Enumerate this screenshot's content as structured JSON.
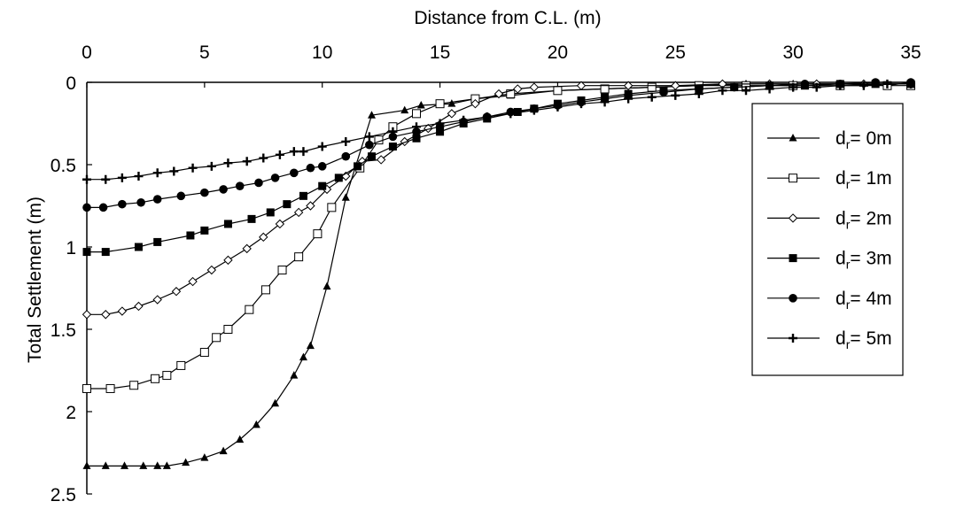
{
  "chart_data": {
    "type": "line",
    "xlabel": "Distance from C.L. (m)",
    "ylabel": "Total Settlement (m)",
    "xlim": [
      0,
      35
    ],
    "ylim": [
      0,
      2.5
    ],
    "y_inverted": true,
    "x_axis_position": "top",
    "x_ticks": [
      0,
      5,
      10,
      15,
      20,
      25,
      30,
      35
    ],
    "y_ticks": [
      0,
      0.5,
      1,
      1.5,
      2,
      2.5
    ],
    "x_tick_labels": [
      "0",
      "5",
      "10",
      "15",
      "20",
      "25",
      "30",
      "35"
    ],
    "y_tick_labels": [
      "0",
      "0.5",
      "1",
      "1.5",
      "2",
      "2.5"
    ],
    "grid": false,
    "legend_position": "right",
    "series": [
      {
        "legend_main": "d",
        "legend_sub": "r",
        "legend_tail": "= 0m",
        "marker": "triangle-filled",
        "x": [
          0,
          0.8,
          1.6,
          2.4,
          3.0,
          3.4,
          4.2,
          5.0,
          5.8,
          6.5,
          7.2,
          8.0,
          8.8,
          9.2,
          9.5,
          10.2,
          11.0,
          12.1,
          13.5,
          14.2,
          15.5,
          16.5,
          18.0,
          20.0,
          22.0,
          24.0,
          26.0,
          28.0,
          30.0,
          32.0,
          34.0,
          35.0
        ],
        "values": [
          2.33,
          2.33,
          2.33,
          2.33,
          2.33,
          2.33,
          2.31,
          2.28,
          2.24,
          2.17,
          2.08,
          1.95,
          1.78,
          1.67,
          1.6,
          1.24,
          0.7,
          0.2,
          0.17,
          0.14,
          0.13,
          0.1,
          0.08,
          0.05,
          0.04,
          0.03,
          0.02,
          0.01,
          0.01,
          0.01,
          0.02,
          0.0
        ]
      },
      {
        "legend_main": "d",
        "legend_sub": "r",
        "legend_tail": "= 1m",
        "marker": "square-open",
        "x": [
          0,
          1.0,
          2.0,
          2.9,
          3.4,
          4.0,
          5.0,
          5.5,
          6.0,
          6.9,
          7.6,
          8.3,
          9.0,
          9.8,
          10.4,
          11.6,
          12.4,
          13.0,
          14.0,
          15.0,
          16.5,
          18.0,
          20.0,
          22.0,
          24.0,
          26.0,
          28.0,
          30.0,
          32.0,
          34.0,
          35.0
        ],
        "values": [
          1.86,
          1.86,
          1.84,
          1.8,
          1.78,
          1.72,
          1.64,
          1.55,
          1.5,
          1.38,
          1.26,
          1.14,
          1.06,
          0.92,
          0.76,
          0.52,
          0.35,
          0.27,
          0.19,
          0.13,
          0.1,
          0.07,
          0.05,
          0.04,
          0.03,
          0.02,
          0.02,
          0.02,
          0.02,
          0.02,
          0.02
        ]
      },
      {
        "legend_main": "d",
        "legend_sub": "r",
        "legend_tail": "= 2m",
        "marker": "diamond-open",
        "x": [
          0,
          0.8,
          1.5,
          2.2,
          3.0,
          3.8,
          4.5,
          5.3,
          6.0,
          6.8,
          7.5,
          8.2,
          9.0,
          9.5,
          10.2,
          11.0,
          11.7,
          12.5,
          13.5,
          14.5,
          15.5,
          16.5,
          17.5,
          18.3,
          19.0,
          21.0,
          23.0,
          25.0,
          27.0,
          29.0,
          31.0,
          33.0,
          35.0
        ],
        "values": [
          1.41,
          1.41,
          1.39,
          1.36,
          1.32,
          1.27,
          1.21,
          1.14,
          1.08,
          1.01,
          0.94,
          0.86,
          0.79,
          0.75,
          0.65,
          0.57,
          0.48,
          0.47,
          0.36,
          0.28,
          0.19,
          0.13,
          0.07,
          0.04,
          0.03,
          0.02,
          0.02,
          0.02,
          0.01,
          0.01,
          0.01,
          0.01,
          0.01
        ]
      },
      {
        "legend_main": "d",
        "legend_sub": "r",
        "legend_tail": "= 3m",
        "marker": "square-filled",
        "x": [
          0,
          0.8,
          2.2,
          3.0,
          4.4,
          5.0,
          6.0,
          7.0,
          7.8,
          8.5,
          9.2,
          10.0,
          10.7,
          11.5,
          12.1,
          13.0,
          14.0,
          15.0,
          16.0,
          17.0,
          18.3,
          19.0,
          20.0,
          21.0,
          22.0,
          23.0,
          24.5,
          26.0,
          27.5,
          29.0,
          30.5,
          32.0,
          33.5,
          35.0
        ],
        "values": [
          1.03,
          1.03,
          1.0,
          0.97,
          0.93,
          0.9,
          0.86,
          0.83,
          0.79,
          0.74,
          0.69,
          0.63,
          0.58,
          0.51,
          0.45,
          0.39,
          0.34,
          0.3,
          0.25,
          0.22,
          0.18,
          0.16,
          0.13,
          0.11,
          0.09,
          0.07,
          0.05,
          0.04,
          0.03,
          0.02,
          0.02,
          0.01,
          0.01,
          0.01
        ]
      },
      {
        "legend_main": "d",
        "legend_sub": "r",
        "legend_tail": "= 4m",
        "marker": "circle-filled",
        "x": [
          0,
          0.7,
          1.5,
          2.3,
          3.0,
          4.0,
          5.0,
          5.8,
          6.5,
          7.3,
          8.0,
          8.8,
          9.5,
          10.0,
          11.0,
          12.0,
          13.0,
          14.0,
          15.0,
          16.0,
          17.0,
          18.0,
          19.0,
          20.0,
          21.0,
          22.0,
          23.0,
          24.5,
          26.0,
          27.5,
          29.0,
          30.5,
          32.0,
          33.5,
          35.0
        ],
        "values": [
          0.76,
          0.76,
          0.74,
          0.73,
          0.71,
          0.69,
          0.67,
          0.65,
          0.63,
          0.61,
          0.58,
          0.55,
          0.52,
          0.51,
          0.45,
          0.38,
          0.33,
          0.3,
          0.27,
          0.24,
          0.21,
          0.18,
          0.16,
          0.14,
          0.12,
          0.1,
          0.08,
          0.06,
          0.04,
          0.03,
          0.02,
          0.01,
          0.01,
          0.0,
          0.0
        ]
      },
      {
        "legend_main": "d",
        "legend_sub": "r",
        "legend_tail": "= 5m",
        "marker": "plus",
        "x": [
          0,
          0.8,
          1.5,
          2.2,
          3.0,
          3.7,
          4.5,
          5.3,
          6.0,
          6.8,
          7.5,
          8.2,
          8.8,
          9.2,
          10.0,
          11.0,
          12.0,
          13.0,
          14.0,
          15.0,
          16.0,
          17.0,
          18.0,
          19.0,
          20.0,
          21.0,
          22.0,
          23.0,
          24.0,
          25.0,
          26.0,
          27.0,
          28.0,
          29.0,
          30.0,
          31.0,
          32.0,
          33.0,
          34.0,
          35.0
        ],
        "values": [
          0.59,
          0.59,
          0.58,
          0.57,
          0.55,
          0.54,
          0.52,
          0.51,
          0.49,
          0.48,
          0.46,
          0.44,
          0.42,
          0.42,
          0.39,
          0.36,
          0.33,
          0.3,
          0.27,
          0.25,
          0.23,
          0.21,
          0.19,
          0.17,
          0.15,
          0.13,
          0.12,
          0.1,
          0.09,
          0.08,
          0.07,
          0.05,
          0.05,
          0.04,
          0.03,
          0.03,
          0.02,
          0.02,
          0.01,
          0.01
        ]
      }
    ]
  }
}
